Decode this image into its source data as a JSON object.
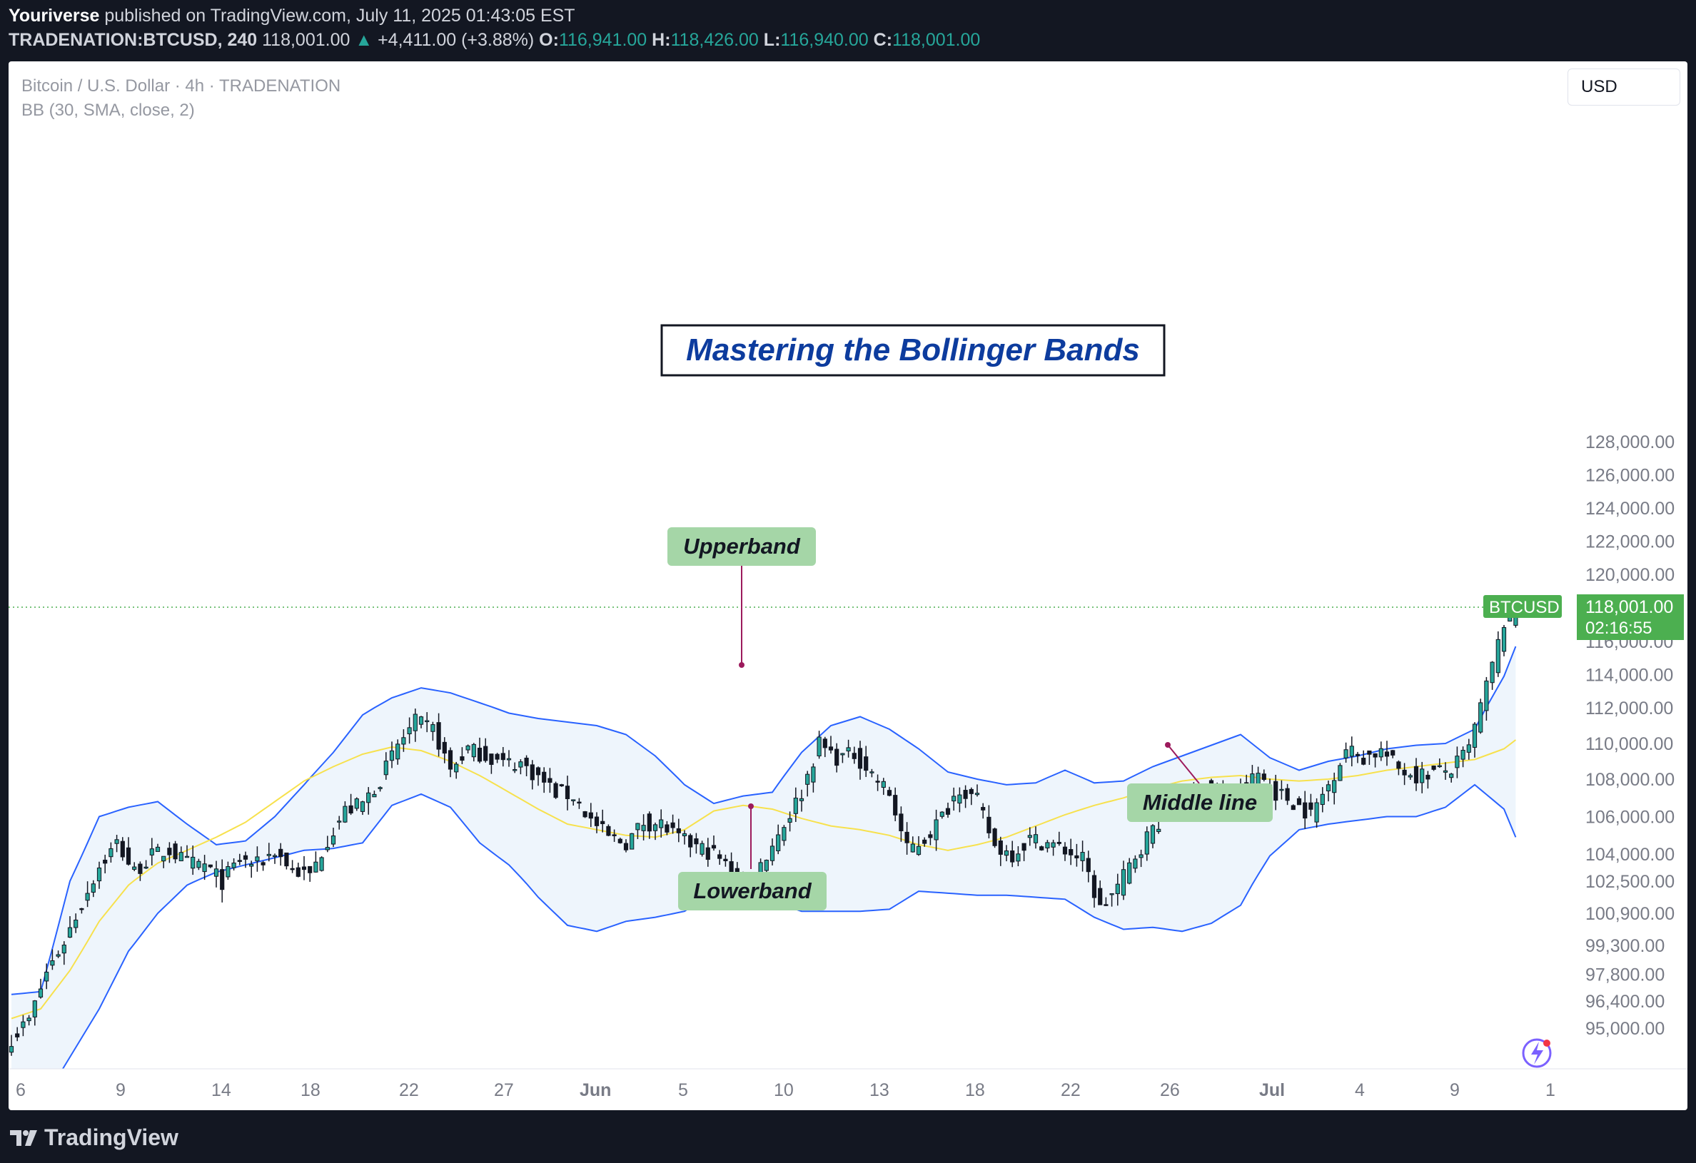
{
  "header": {
    "author": "Youriverse",
    "published_text": "published on TradingView.com, July 11, 2025 01:43:05 EST",
    "symbol": "TRADENATION:BTCUSD, 240",
    "last": "118,001.00",
    "change_arrow": "▲",
    "change": "+4,411.00 (+3.88%)",
    "open_label": "O:",
    "open": "116,941.00",
    "high_label": "H:",
    "high": "118,426.00",
    "low_label": "L:",
    "low": "116,940.00",
    "close_label": "C:",
    "close": "118,001.00"
  },
  "legend": {
    "instrument": "Bitcoin / U.S. Dollar · 4h · TRADENATION",
    "indicator": "BB (30, SMA, close, 2)"
  },
  "currency_button": "USD",
  "footer": {
    "brand": "TradingView",
    "logo_icon": "tradingview-logo-icon"
  },
  "colors": {
    "up": "#26a69a",
    "candle": "#131722",
    "band": "#2962ff",
    "middle": "#f7e14d",
    "fill": "#eef5fc",
    "label_bg": "#a5d6a7",
    "title_color": "#0d3c9e",
    "price_tag": "#4caf50"
  },
  "chart_data": {
    "type": "candlestick",
    "title": "Mastering the Bollinger Bands",
    "indicator": "Bollinger Bands (30, SMA, close, 2)",
    "y_ticks": [
      128000,
      126000,
      124000,
      122000,
      120000,
      116000,
      114000,
      112000,
      110000,
      108000,
      106000,
      104000,
      102500,
      100900,
      99300,
      97800,
      96400,
      95000
    ],
    "y_tick_labels": [
      "128,000.00",
      "126,000.00",
      "124,000.00",
      "122,000.00",
      "120,000.00",
      "116,000.00",
      "114,000.00",
      "112,000.00",
      "110,000.00",
      "108,000.00",
      "106,000.00",
      "104,000.00",
      "102,500.00",
      "100,900.00",
      "99,300.00",
      "97,800.00",
      "96,400.00",
      "95,000.00"
    ],
    "x_tick_labels": [
      "6",
      "9",
      "14",
      "18",
      "22",
      "27",
      "Jun",
      "5",
      "10",
      "13",
      "18",
      "22",
      "26",
      "Jul",
      "4",
      "9",
      "1"
    ],
    "x_tick_bold": [
      false,
      false,
      false,
      false,
      false,
      false,
      true,
      false,
      false,
      false,
      false,
      false,
      false,
      true,
      false,
      false,
      false
    ],
    "last_price": {
      "symbol": "BTCUSD",
      "value": 118001,
      "label": "118,001.00",
      "countdown": "02:16:55"
    },
    "close_path": [
      [
        0,
        94500
      ],
      [
        3,
        95400
      ],
      [
        6,
        97900
      ],
      [
        9,
        99500
      ],
      [
        12,
        101400
      ],
      [
        15,
        103300
      ],
      [
        18,
        104600
      ],
      [
        21,
        103000
      ],
      [
        24,
        103900
      ],
      [
        27,
        104200
      ],
      [
        30,
        103500
      ],
      [
        33,
        103400
      ],
      [
        36,
        102500
      ],
      [
        39,
        103700
      ],
      [
        42,
        103400
      ],
      [
        45,
        104200
      ],
      [
        48,
        103100
      ],
      [
        51,
        102800
      ],
      [
        54,
        104800
      ],
      [
        57,
        106300
      ],
      [
        60,
        106700
      ],
      [
        63,
        108000
      ],
      [
        66,
        109900
      ],
      [
        69,
        111200
      ],
      [
        72,
        110800
      ],
      [
        75,
        108500
      ],
      [
        78,
        109700
      ],
      [
        81,
        109300
      ],
      [
        84,
        108900
      ],
      [
        87,
        108900
      ],
      [
        90,
        108100
      ],
      [
        93,
        107300
      ],
      [
        96,
        107100
      ],
      [
        99,
        105800
      ],
      [
        102,
        104900
      ],
      [
        105,
        104600
      ],
      [
        108,
        105700
      ],
      [
        111,
        105600
      ],
      [
        114,
        104800
      ],
      [
        117,
        104400
      ],
      [
        120,
        104000
      ],
      [
        123,
        103100
      ],
      [
        126,
        102200
      ],
      [
        129,
        104000
      ],
      [
        132,
        105600
      ],
      [
        135,
        107300
      ],
      [
        138,
        110000
      ],
      [
        141,
        109200
      ],
      [
        144,
        109400
      ],
      [
        147,
        108300
      ],
      [
        150,
        107200
      ],
      [
        153,
        104200
      ],
      [
        156,
        104800
      ],
      [
        159,
        106000
      ],
      [
        162,
        107600
      ],
      [
        165,
        106800
      ],
      [
        168,
        104400
      ],
      [
        171,
        104000
      ],
      [
        174,
        104800
      ],
      [
        177,
        104600
      ],
      [
        180,
        104200
      ],
      [
        183,
        103700
      ],
      [
        186,
        101100
      ],
      [
        189,
        102200
      ],
      [
        192,
        103900
      ],
      [
        195,
        105400
      ],
      [
        198,
        106400
      ],
      [
        201,
        107200
      ],
      [
        204,
        107500
      ],
      [
        207,
        106900
      ],
      [
        210,
        107400
      ],
      [
        213,
        108300
      ],
      [
        216,
        107300
      ],
      [
        219,
        106800
      ],
      [
        222,
        106100
      ],
      [
        225,
        107700
      ],
      [
        228,
        109700
      ],
      [
        231,
        109200
      ],
      [
        234,
        109600
      ],
      [
        237,
        108600
      ],
      [
        240,
        108200
      ],
      [
        243,
        108400
      ],
      [
        246,
        108500
      ],
      [
        249,
        109700
      ],
      [
        252,
        113300
      ],
      [
        255,
        117100
      ],
      [
        257,
        118001
      ]
    ],
    "upper_band": [
      [
        0,
        96750
      ],
      [
        5,
        96900
      ],
      [
        10,
        102500
      ],
      [
        15,
        106000
      ],
      [
        20,
        106500
      ],
      [
        25,
        106800
      ],
      [
        30,
        105600
      ],
      [
        35,
        104500
      ],
      [
        40,
        104700
      ],
      [
        45,
        106000
      ],
      [
        50,
        107700
      ],
      [
        55,
        109500
      ],
      [
        60,
        111600
      ],
      [
        65,
        112600
      ],
      [
        70,
        113200
      ],
      [
        75,
        112900
      ],
      [
        80,
        112300
      ],
      [
        85,
        111700
      ],
      [
        90,
        111400
      ],
      [
        95,
        111200
      ],
      [
        100,
        111000
      ],
      [
        105,
        110500
      ],
      [
        110,
        109300
      ],
      [
        115,
        107700
      ],
      [
        120,
        106700
      ],
      [
        125,
        107100
      ],
      [
        130,
        107300
      ],
      [
        135,
        109500
      ],
      [
        140,
        111000
      ],
      [
        145,
        111500
      ],
      [
        150,
        110800
      ],
      [
        155,
        109700
      ],
      [
        160,
        108400
      ],
      [
        165,
        108000
      ],
      [
        170,
        107700
      ],
      [
        175,
        107800
      ],
      [
        180,
        108500
      ],
      [
        185,
        107800
      ],
      [
        190,
        107900
      ],
      [
        195,
        108700
      ],
      [
        200,
        109300
      ],
      [
        205,
        109900
      ],
      [
        210,
        110500
      ],
      [
        215,
        109200
      ],
      [
        220,
        108500
      ],
      [
        225,
        109000
      ],
      [
        230,
        109300
      ],
      [
        235,
        109700
      ],
      [
        240,
        109900
      ],
      [
        245,
        110000
      ],
      [
        250,
        110800
      ],
      [
        255,
        113900
      ],
      [
        257,
        115700
      ]
    ],
    "middle_band": [
      [
        0,
        95500
      ],
      [
        5,
        96000
      ],
      [
        10,
        98000
      ],
      [
        15,
        100500
      ],
      [
        20,
        102300
      ],
      [
        25,
        103500
      ],
      [
        30,
        104200
      ],
      [
        35,
        104900
      ],
      [
        40,
        105700
      ],
      [
        45,
        106800
      ],
      [
        50,
        107900
      ],
      [
        55,
        108700
      ],
      [
        60,
        109400
      ],
      [
        65,
        109800
      ],
      [
        70,
        109600
      ],
      [
        75,
        109000
      ],
      [
        80,
        108200
      ],
      [
        85,
        107300
      ],
      [
        90,
        106400
      ],
      [
        95,
        105600
      ],
      [
        100,
        105300
      ],
      [
        105,
        105000
      ],
      [
        110,
        104900
      ],
      [
        115,
        105300
      ],
      [
        120,
        106300
      ],
      [
        125,
        106600
      ],
      [
        130,
        106400
      ],
      [
        135,
        105900
      ],
      [
        140,
        105500
      ],
      [
        145,
        105300
      ],
      [
        150,
        105000
      ],
      [
        155,
        104500
      ],
      [
        160,
        104200
      ],
      [
        165,
        104500
      ],
      [
        170,
        104900
      ],
      [
        175,
        105500
      ],
      [
        180,
        106100
      ],
      [
        185,
        106600
      ],
      [
        190,
        107000
      ],
      [
        195,
        107500
      ],
      [
        200,
        107900
      ],
      [
        205,
        108100
      ],
      [
        210,
        108200
      ],
      [
        215,
        108000
      ],
      [
        220,
        107900
      ],
      [
        225,
        108000
      ],
      [
        230,
        108200
      ],
      [
        235,
        108500
      ],
      [
        240,
        108700
      ],
      [
        245,
        108900
      ],
      [
        250,
        109100
      ],
      [
        255,
        109700
      ],
      [
        257,
        110200
      ]
    ],
    "lower_band": [
      [
        0,
        90000
      ],
      [
        5,
        91000
      ],
      [
        10,
        93500
      ],
      [
        15,
        96000
      ],
      [
        20,
        99000
      ],
      [
        25,
        100900
      ],
      [
        30,
        102300
      ],
      [
        35,
        103000
      ],
      [
        40,
        103400
      ],
      [
        45,
        103800
      ],
      [
        50,
        104200
      ],
      [
        55,
        104300
      ],
      [
        60,
        104600
      ],
      [
        65,
        106600
      ],
      [
        70,
        107200
      ],
      [
        75,
        106500
      ],
      [
        80,
        104600
      ],
      [
        85,
        103400
      ],
      [
        90,
        101700
      ],
      [
        95,
        100300
      ],
      [
        100,
        100000
      ],
      [
        105,
        100500
      ],
      [
        110,
        100700
      ],
      [
        115,
        101000
      ],
      [
        120,
        102000
      ],
      [
        125,
        102000
      ],
      [
        130,
        101500
      ],
      [
        135,
        101000
      ],
      [
        140,
        101000
      ],
      [
        145,
        101000
      ],
      [
        150,
        101100
      ],
      [
        155,
        102000
      ],
      [
        160,
        101900
      ],
      [
        165,
        101800
      ],
      [
        170,
        101800
      ],
      [
        175,
        101700
      ],
      [
        180,
        101600
      ],
      [
        185,
        100700
      ],
      [
        190,
        100100
      ],
      [
        195,
        100200
      ],
      [
        200,
        100000
      ],
      [
        205,
        100400
      ],
      [
        210,
        101300
      ],
      [
        215,
        103900
      ],
      [
        220,
        105300
      ],
      [
        225,
        105600
      ],
      [
        230,
        105800
      ],
      [
        235,
        106000
      ],
      [
        240,
        106000
      ],
      [
        245,
        106500
      ],
      [
        250,
        107700
      ],
      [
        255,
        106400
      ],
      [
        257,
        104900
      ]
    ],
    "annotations": [
      {
        "text": "Upperband",
        "type": "label"
      },
      {
        "text": "Middle line",
        "type": "label"
      },
      {
        "text": "Lowerband",
        "type": "label"
      }
    ]
  }
}
